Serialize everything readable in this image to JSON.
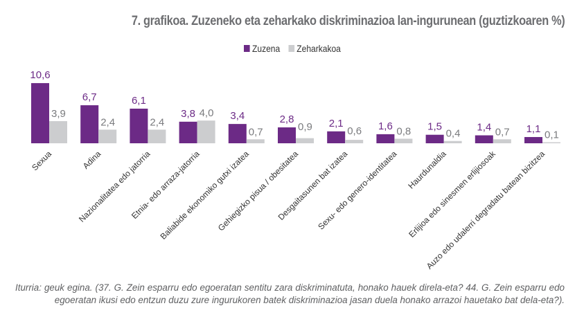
{
  "colors": {
    "zuzena": "#6c2a86",
    "zeharkakoa": "#cccdcf",
    "zuzena_label": "#6c2a86",
    "zeharkakoa_label": "#7a7b7e",
    "title": "#6d6e71"
  },
  "chart_data": {
    "type": "bar",
    "title": "7. grafikoa. Zuzeneko eta zeharkako diskriminazioa lan-ingurunean (guztizkoaren %)",
    "xlabel": "",
    "ylabel": "",
    "ylim": [
      0,
      11
    ],
    "grid": false,
    "legend_position": "top-center",
    "categories": [
      "Sexua",
      "Adina",
      "Nazionalitatea edo jatorria",
      "Etnia- edo arraza-jatorria",
      "Baliabide ekonomiko gutxi izatea",
      "Gehiegizko pisua / obesitatea",
      "Desgaitasunen bat izatea",
      "Sexu- edo genero-identitatea",
      "Haurdunaldia",
      "Erlijioa edo sinesmen erlijiosoak",
      "Auzo edo udalerri degradatu batean bizitzea"
    ],
    "series": [
      {
        "name": "Zuzena",
        "values": [
          10.6,
          6.7,
          6.1,
          3.8,
          3.4,
          2.8,
          2.1,
          1.6,
          1.5,
          1.4,
          1.1
        ],
        "labels": [
          "10,6",
          "6,7",
          "6,1",
          "3,8",
          "3,4",
          "2,8",
          "2,1",
          "1,6",
          "1,5",
          "1,4",
          "1,1"
        ]
      },
      {
        "name": "Zeharkakoa",
        "values": [
          3.9,
          2.4,
          2.4,
          4.0,
          0.7,
          0.9,
          0.6,
          0.8,
          0.4,
          0.7,
          0.1
        ],
        "labels": [
          "3,9",
          "2,4",
          "2,4",
          "4,0",
          "0,7",
          "0,9",
          "0,6",
          "0,8",
          "0,4",
          "0,7",
          "0,1"
        ]
      }
    ]
  },
  "caption": "Iturria: geuk egina. (37. G. Zein esparru edo egoeratan sentitu zara diskriminatuta, honako hauek direla-eta? 44. G. Zein esparru edo egoeratan ikusi edo entzun duzu zure ingurukoren batek diskriminazioa jasan duela honako arrazoi hauetako bat dela-eta?)."
}
